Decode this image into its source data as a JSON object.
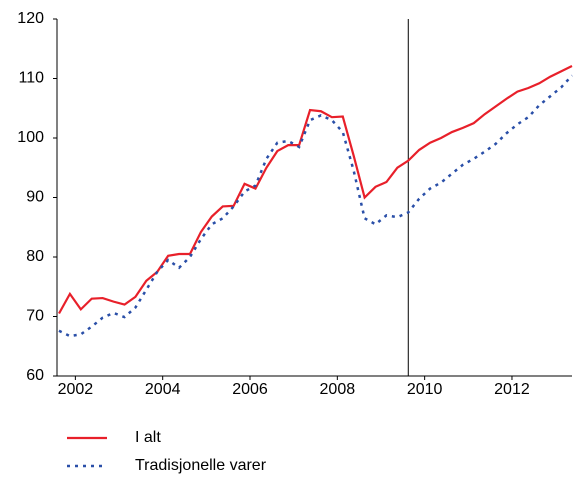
{
  "chart_data": {
    "type": "line",
    "x": [
      2002,
      2002.25,
      2002.5,
      2002.75,
      2003,
      2003.25,
      2003.5,
      2003.75,
      2004,
      2004.25,
      2004.5,
      2004.75,
      2005,
      2005.25,
      2005.5,
      2005.75,
      2006,
      2006.25,
      2006.5,
      2006.75,
      2007,
      2007.25,
      2007.5,
      2007.75,
      2008,
      2008.25,
      2008.5,
      2008.75,
      2009,
      2009.25,
      2009.5,
      2009.75,
      2010,
      2010.25,
      2010.5,
      2010.75,
      2011,
      2011.25,
      2011.5,
      2011.75,
      2012,
      2012.25,
      2012.5,
      2012.75,
      2013,
      2013.25,
      2013.5,
      2013.75
    ],
    "series": [
      {
        "name": "I alt",
        "color": "#e8202a",
        "dash": false,
        "values": [
          70.5,
          73.8,
          71.2,
          73,
          73.1,
          72.5,
          72,
          73.3,
          76,
          77.5,
          80.2,
          80.5,
          80.5,
          84.2,
          86.8,
          88.5,
          88.6,
          92.3,
          91.5,
          95,
          97.8,
          98.8,
          98.8,
          104.7,
          104.5,
          103.5,
          103.6,
          97,
          90,
          91.8,
          92.6,
          95,
          96.2,
          98,
          99.2,
          100,
          101,
          101.7,
          102.5,
          104,
          105.3,
          106.6,
          107.8,
          108.4,
          109.2,
          110.3,
          111.2,
          112.1
        ]
      },
      {
        "name": "Tradisjonelle varer",
        "color": "#2a4fa8",
        "dash": true,
        "values": [
          67.6,
          66.7,
          67,
          68.3,
          69.8,
          70.6,
          69.9,
          71.5,
          74.5,
          77.5,
          79.5,
          78.2,
          80,
          83,
          85.5,
          86.5,
          88.5,
          91,
          92,
          96.5,
          99.2,
          99.5,
          98.5,
          103,
          103.8,
          103,
          101,
          94.5,
          86.5,
          85.5,
          87,
          86.7,
          87.5,
          89.8,
          91.5,
          92.5,
          94,
          95.5,
          96.5,
          97.7,
          99,
          100.8,
          102.3,
          103.5,
          105.5,
          107,
          108.5,
          110.5
        ]
      }
    ],
    "xlim": [
      2002,
      2013.75
    ],
    "xticks": [
      {
        "value": 2002.375,
        "label": "2002"
      },
      {
        "value": 2004.375,
        "label": "2004"
      },
      {
        "value": 2006.375,
        "label": "2006"
      },
      {
        "value": 2008.375,
        "label": "2008"
      },
      {
        "value": 2010.375,
        "label": "2010"
      },
      {
        "value": 2012.375,
        "label": "2012"
      }
    ],
    "ylim": [
      60,
      120
    ],
    "yticks": [
      60,
      70,
      80,
      90,
      100,
      110,
      120
    ],
    "vline": 2010
  }
}
